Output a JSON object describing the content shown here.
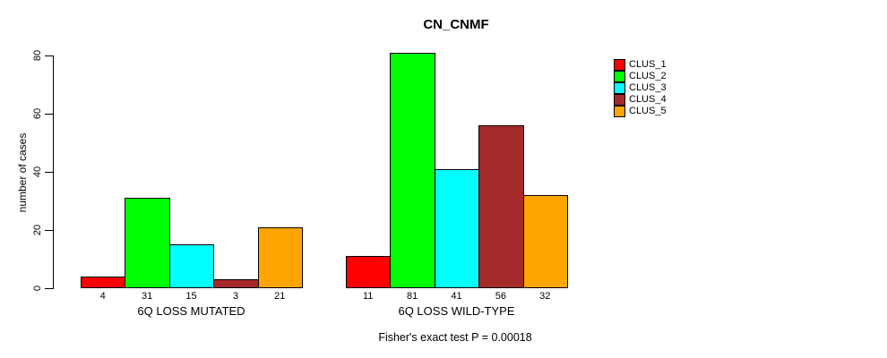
{
  "title": "CN_CNMF",
  "caption": "Fisher's exact test P = 0.00018",
  "chart_data": {
    "type": "bar",
    "title": "CN_CNMF",
    "ylabel": "number of cases",
    "xlabel": "",
    "ylim": [
      0,
      80
    ],
    "yticks": [
      0,
      20,
      40,
      60,
      80
    ],
    "grid": false,
    "legend_position": "right",
    "bar_value_labels_shown": true,
    "groups": [
      {
        "label": "6Q LOSS MUTATED",
        "values": [
          4,
          31,
          15,
          3,
          21
        ]
      },
      {
        "label": "6Q LOSS WILD-TYPE",
        "values": [
          11,
          81,
          41,
          56,
          32
        ]
      }
    ],
    "series": [
      {
        "name": "CLUS_1",
        "color": "#FF0000"
      },
      {
        "name": "CLUS_2",
        "color": "#00FF00"
      },
      {
        "name": "CLUS_3",
        "color": "#00FFFF"
      },
      {
        "name": "CLUS_4",
        "color": "#A52A2A"
      },
      {
        "name": "CLUS_5",
        "color": "#FFA500"
      }
    ],
    "annotation": "Fisher's exact test P = 0.00018"
  }
}
